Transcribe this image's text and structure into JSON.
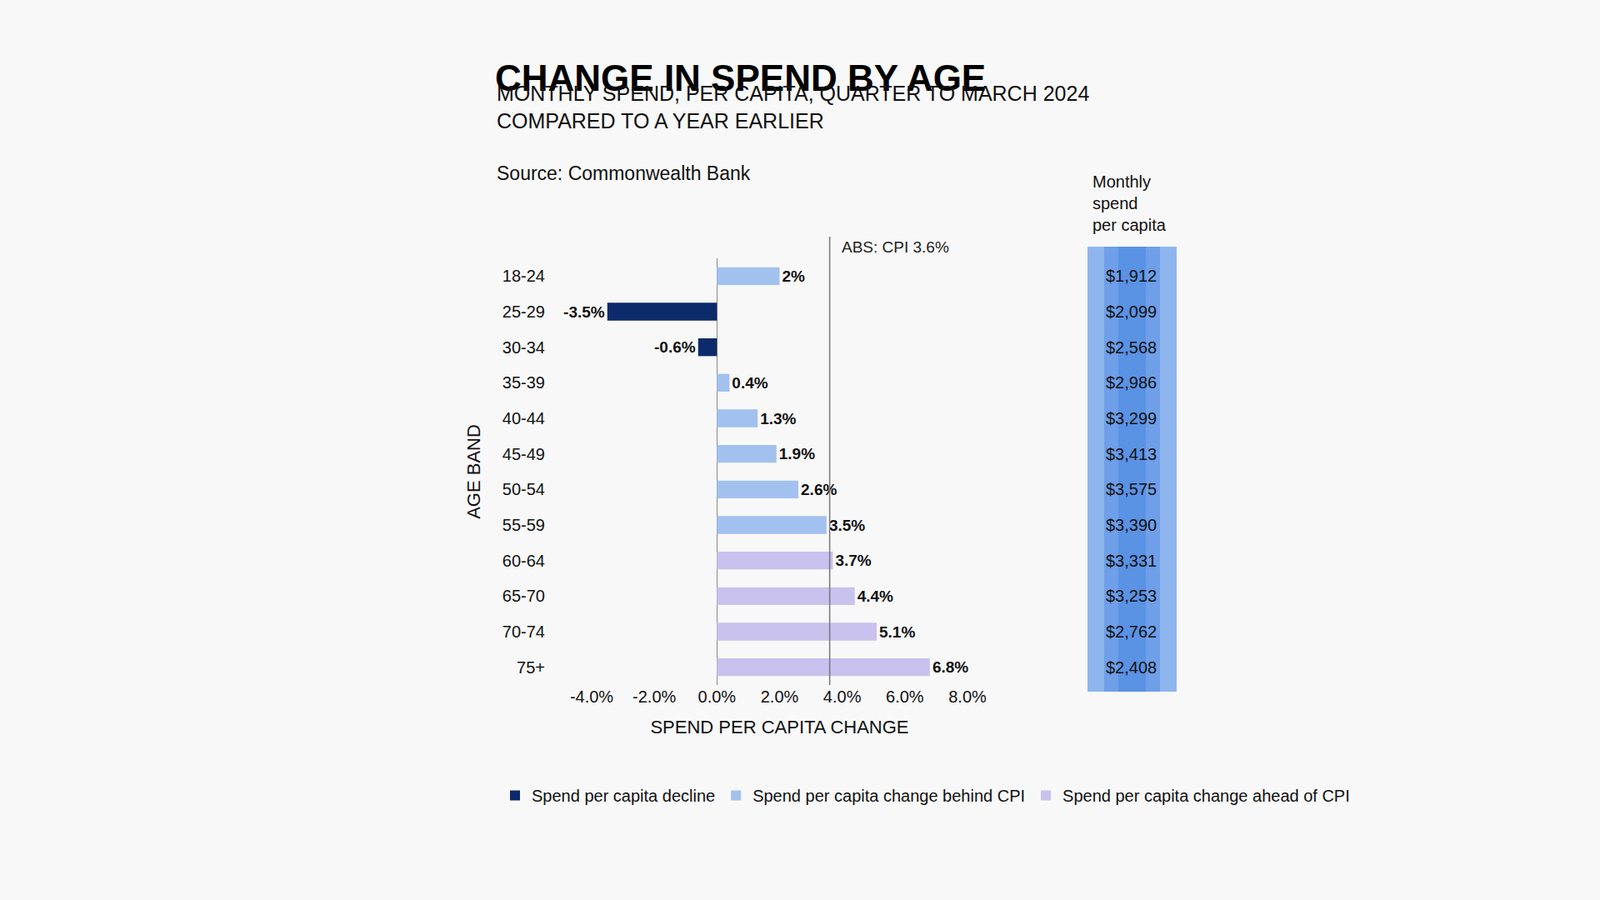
{
  "chart_data": {
    "type": "bar",
    "orientation": "horizontal",
    "title": "CHANGE IN SPEND BY AGE",
    "subtitle": [
      "MONTHLY SPEND, PER CAPITA, QUARTER TO MARCH 2024",
      "COMPARED TO A YEAR EARLIER"
    ],
    "source": "Source: Commonwealth Bank",
    "x_label": "SPEND PER CAPITA CHANGE",
    "y_label": "AGE BAND",
    "categories": [
      "18-24",
      "25-29",
      "30-34",
      "35-39",
      "40-44",
      "45-49",
      "50-54",
      "55-59",
      "60-64",
      "65-70",
      "70-74",
      "75+"
    ],
    "series": [
      {
        "name": "Spend per capita decline",
        "color": "#0d2b6b",
        "values": [
          null,
          -3.5,
          -0.6,
          null,
          null,
          null,
          null,
          null,
          null,
          null,
          null,
          null
        ],
        "value_labels": [
          null,
          "-3.5%",
          "-0.6%",
          null,
          null,
          null,
          null,
          null,
          null,
          null,
          null,
          null
        ]
      },
      {
        "name": "Spend per capita change behind CPI",
        "color": "#a3c1ef",
        "values": [
          2,
          null,
          null,
          0.4,
          1.3,
          1.9,
          2.6,
          3.5,
          null,
          null,
          null,
          null
        ],
        "value_labels": [
          "2%",
          null,
          null,
          "0.4%",
          "1.3%",
          "1.9%",
          "2.6%",
          "3.5%",
          null,
          null,
          null,
          null
        ]
      },
      {
        "name": "Spend per capita change ahead of CPI",
        "color": "#c9c1ee",
        "values": [
          null,
          null,
          null,
          null,
          null,
          null,
          null,
          null,
          3.7,
          4.4,
          5.1,
          6.8
        ],
        "value_labels": [
          null,
          null,
          null,
          null,
          null,
          null,
          null,
          null,
          "3.7%",
          "4.4%",
          "5.1%",
          "6.8%"
        ]
      }
    ],
    "xlim": [
      -4,
      8
    ],
    "xticks": [
      {
        "value": -4,
        "label": "-4.0%"
      },
      {
        "value": -2,
        "label": "-2.0%"
      },
      {
        "value": 0,
        "label": "0.0%"
      },
      {
        "value": 2,
        "label": "2.0%"
      },
      {
        "value": 4,
        "label": "4.0%"
      },
      {
        "value": 6,
        "label": "6.0%"
      },
      {
        "value": 8,
        "label": "8.0%"
      }
    ],
    "reference_lines": [
      {
        "value": 3.6,
        "label": "ABS: CPI 3.6%"
      }
    ],
    "spend_column": {
      "header": [
        "Monthly",
        "spend",
        "per capita"
      ],
      "labels": [
        "$1,912",
        "$2,099",
        "$2,568",
        "$2,986",
        "$3,299",
        "$3,413",
        "$3,575",
        "$3,390",
        "$3,331",
        "$3,253",
        "$2,762",
        "$2,408"
      ]
    },
    "grid": false,
    "data_labels": true,
    "legend": "bottom"
  }
}
